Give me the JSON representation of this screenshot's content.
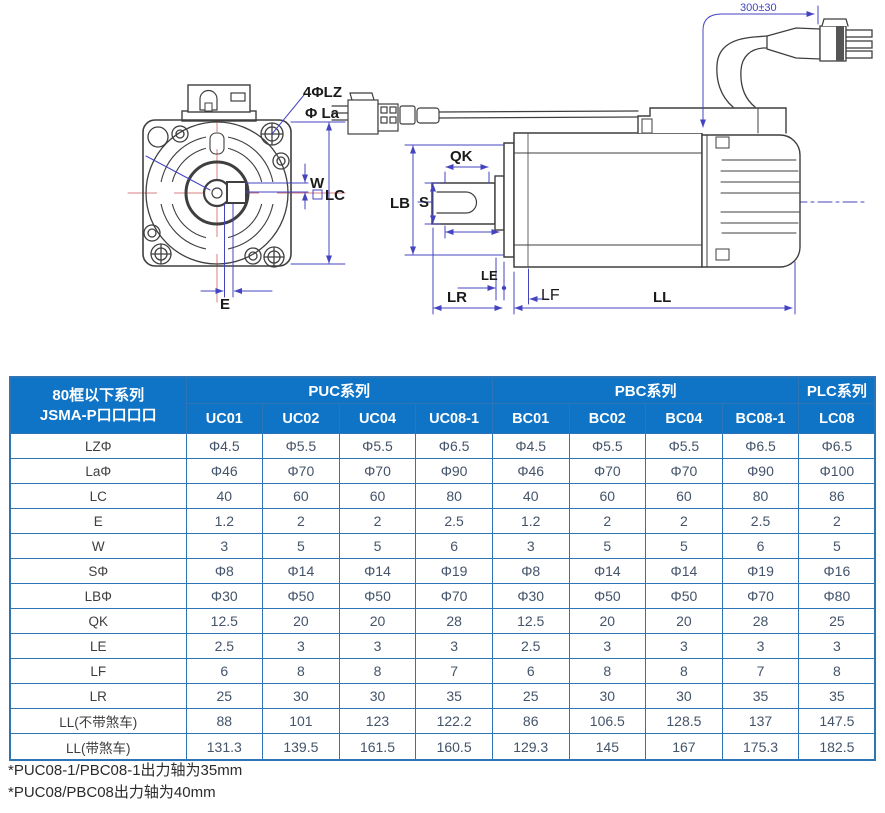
{
  "colors": {
    "header_bg": "#1074C6",
    "table_border": "#2E75B6",
    "dimension_line": "#4444C0",
    "center_line": "#D98080",
    "drawing_line": "#3F3F3F",
    "value_text": "#44546A"
  },
  "diagram": {
    "front_labels": {
      "holes": "4ΦLZ",
      "la": "Φ La",
      "w": "W",
      "lc": "LC",
      "e": "E"
    },
    "side_labels": {
      "qk": "QK",
      "s": "S",
      "lb": "LB",
      "le": "LE",
      "lr": "LR",
      "lf": "LF",
      "ll": "LL",
      "cable_length": "300±30"
    }
  },
  "table": {
    "corner_header": {
      "line1": "80框以下系列",
      "line2": "JSMA-P口口口口"
    },
    "groups": [
      {
        "label": "PUC系列",
        "span": 4
      },
      {
        "label": "PBC系列",
        "span": 4
      },
      {
        "label": "PLC系列",
        "span": 1
      }
    ],
    "models": [
      "UC01",
      "UC02",
      "UC04",
      "UC08-1",
      "BC01",
      "BC02",
      "BC04",
      "BC08-1",
      "LC08"
    ],
    "rows": [
      {
        "label": "LZΦ",
        "values": [
          "Φ4.5",
          "Φ5.5",
          "Φ5.5",
          "Φ6.5",
          "Φ4.5",
          "Φ5.5",
          "Φ5.5",
          "Φ6.5",
          "Φ6.5"
        ]
      },
      {
        "label": "LaΦ",
        "values": [
          "Φ46",
          "Φ70",
          "Φ70",
          "Φ90",
          "Φ46",
          "Φ70",
          "Φ70",
          "Φ90",
          "Φ100"
        ]
      },
      {
        "label": "LC",
        "values": [
          "40",
          "60",
          "60",
          "80",
          "40",
          "60",
          "60",
          "80",
          "86"
        ]
      },
      {
        "label": "E",
        "values": [
          "1.2",
          "2",
          "2",
          "2.5",
          "1.2",
          "2",
          "2",
          "2.5",
          "2"
        ]
      },
      {
        "label": "W",
        "values": [
          "3",
          "5",
          "5",
          "6",
          "3",
          "5",
          "5",
          "6",
          "5"
        ]
      },
      {
        "label": "SΦ",
        "values": [
          "Φ8",
          "Φ14",
          "Φ14",
          "Φ19",
          "Φ8",
          "Φ14",
          "Φ14",
          "Φ19",
          "Φ16"
        ]
      },
      {
        "label": "LBΦ",
        "values": [
          "Φ30",
          "Φ50",
          "Φ50",
          "Φ70",
          "Φ30",
          "Φ50",
          "Φ50",
          "Φ70",
          "Φ80"
        ]
      },
      {
        "label": "QK",
        "values": [
          "12.5",
          "20",
          "20",
          "28",
          "12.5",
          "20",
          "20",
          "28",
          "25"
        ]
      },
      {
        "label": "LE",
        "values": [
          "2.5",
          "3",
          "3",
          "3",
          "2.5",
          "3",
          "3",
          "3",
          "3"
        ]
      },
      {
        "label": "LF",
        "values": [
          "6",
          "8",
          "8",
          "7",
          "6",
          "8",
          "8",
          "7",
          "8"
        ]
      },
      {
        "label": "LR",
        "values": [
          "25",
          "30",
          "30",
          "35",
          "25",
          "30",
          "30",
          "35",
          "35"
        ]
      },
      {
        "label": "LL(不带煞车)",
        "values": [
          "88",
          "101",
          "123",
          "122.2",
          "86",
          "106.5",
          "128.5",
          "137",
          "147.5"
        ]
      },
      {
        "label": "LL(带煞车)",
        "values": [
          "131.3",
          "139.5",
          "161.5",
          "160.5",
          "129.3",
          "145",
          "167",
          "175.3",
          "182.5"
        ]
      }
    ]
  },
  "footnotes": [
    "*PUC08-1/PBC08-1出力轴为35mm",
    "*PUC08/PBC08出力轴为40mm"
  ]
}
